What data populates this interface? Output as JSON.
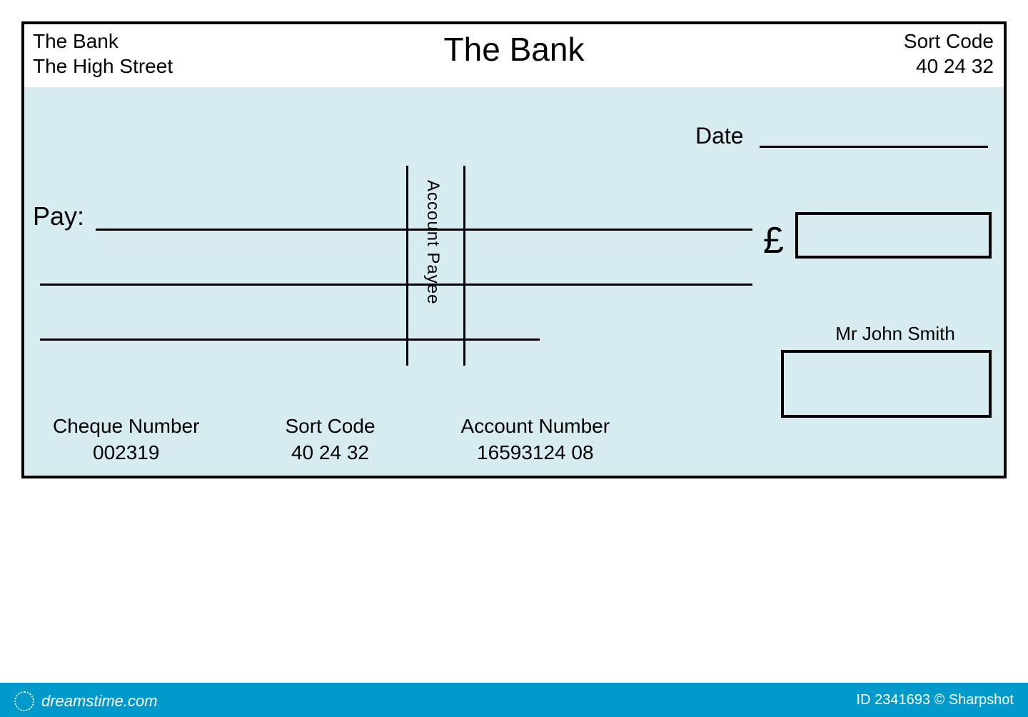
{
  "cheque": {
    "border_color": "#000000",
    "background_color": "#ffffff",
    "body_background_color": "#d6ecf0",
    "line_color": "#000000",
    "header": {
      "bank_name": "The Bank",
      "bank_address_line1": "The Bank",
      "bank_address_line2": "The High Street",
      "sort_code_label": "Sort Code",
      "sort_code_value": "40 24 32",
      "title_fontsize": 46,
      "side_fontsize": 28
    },
    "date": {
      "label": "Date",
      "label_fontsize": 32
    },
    "pay": {
      "label": "Pay:",
      "label_fontsize": 36,
      "account_payee_text": "Account Payee",
      "account_payee_fontsize": 24
    },
    "amount": {
      "currency_symbol": "£",
      "symbol_fontsize": 52
    },
    "signature": {
      "account_holder": "Mr John Smith",
      "holder_fontsize": 26
    },
    "bottom": {
      "cheque_number_label": "Cheque Number",
      "cheque_number_value": "002319",
      "sort_code_label": "Sort Code",
      "sort_code_value": "40 24 32",
      "account_number_label": "Account Number",
      "account_number_value": "16593124 08",
      "fontsize": 28
    }
  },
  "footer": {
    "bar_color": "#0099cc",
    "text_color": "#ffffff",
    "site_text": "dreamstime.com",
    "credit_text": "ID 2341693 © Sharpshot",
    "site_fontsize": 22,
    "credit_fontsize": 20
  }
}
